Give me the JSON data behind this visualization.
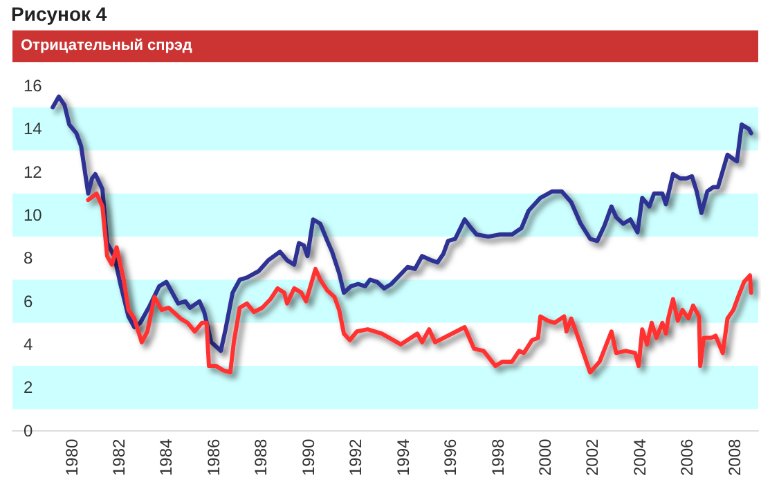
{
  "chart_data": {
    "type": "line",
    "title": "Рисунок 4",
    "subtitle": "Отрицательный спрэд",
    "xlim": [
      1977.5,
      2009
    ],
    "xticks": [
      1980,
      1982,
      1984,
      1986,
      1988,
      1990,
      1992,
      1994,
      1996,
      1998,
      2000,
      2002,
      2004,
      2006,
      2008
    ],
    "ylim": [
      0,
      16
    ],
    "yticks": [
      0,
      2,
      4,
      6,
      8,
      10,
      12,
      14,
      16
    ],
    "grid": false,
    "marker": "none",
    "line_style": "solid",
    "bands": [
      {
        "axis": "y",
        "from": 1,
        "to": 3,
        "color": "#ccffff"
      },
      {
        "axis": "y",
        "from": 5,
        "to": 7,
        "color": "#ccffff"
      },
      {
        "axis": "y",
        "from": 9,
        "to": 11,
        "color": "#ccffff"
      },
      {
        "axis": "y",
        "from": 13,
        "to": 15,
        "color": "#ccffff"
      }
    ],
    "series": [
      {
        "color": "#2e3192",
        "x": [
          1979.2,
          1979.46,
          1979.7,
          1979.9,
          1980.2,
          1980.4,
          1980.7,
          1980.86,
          1981.0,
          1981.3,
          1981.5,
          1981.8,
          1982.06,
          1982.4,
          1982.65,
          1982.9,
          1983.3,
          1983.7,
          1984.0,
          1984.3,
          1984.5,
          1984.8,
          1985.0,
          1985.4,
          1985.6,
          1985.9,
          1986.1,
          1986.3,
          1986.5,
          1986.8,
          1987.1,
          1987.4,
          1987.9,
          1988.3,
          1988.8,
          1989.1,
          1989.4,
          1989.6,
          1989.8,
          1989.96,
          1990.2,
          1990.5,
          1990.8,
          1991.0,
          1991.3,
          1991.5,
          1991.8,
          1992.1,
          1992.4,
          1992.6,
          1992.9,
          1993.2,
          1993.5,
          1993.85,
          1994.2,
          1994.5,
          1994.8,
          1995.2,
          1995.45,
          1995.7,
          1995.9,
          1996.2,
          1996.6,
          1996.8,
          1997.1,
          1997.6,
          1998.1,
          1998.6,
          1999.0,
          1999.3,
          1999.8,
          2000.3,
          2000.7,
          2001.1,
          2001.5,
          2001.9,
          2002.2,
          2002.5,
          2002.8,
          2003.0,
          2003.3,
          2003.6,
          2003.9,
          2004.1,
          2004.4,
          2004.6,
          2004.95,
          2005.1,
          2005.4,
          2005.7,
          2005.96,
          2006.2,
          2006.4,
          2006.6,
          2006.85,
          2007.1,
          2007.3,
          2007.7,
          2007.95,
          2008.1,
          2008.3,
          2008.6,
          2008.7
        ],
        "values": [
          15.0,
          15.5,
          15.1,
          14.2,
          13.8,
          13.2,
          11.0,
          11.7,
          11.9,
          11.2,
          8.7,
          8.1,
          6.8,
          5.3,
          4.8,
          5.0,
          5.8,
          6.7,
          6.9,
          6.3,
          5.9,
          6.0,
          5.7,
          6.0,
          5.5,
          4.1,
          3.9,
          3.7,
          4.7,
          6.4,
          7.0,
          7.1,
          7.4,
          7.9,
          8.3,
          7.9,
          7.7,
          8.7,
          8.6,
          8.1,
          9.8,
          9.6,
          8.8,
          8.3,
          7.3,
          6.4,
          6.7,
          6.8,
          6.7,
          7.0,
          6.9,
          6.6,
          6.8,
          7.2,
          7.6,
          7.5,
          8.1,
          7.9,
          7.8,
          8.2,
          8.8,
          8.9,
          9.8,
          9.5,
          9.1,
          9.0,
          9.1,
          9.1,
          9.4,
          10.2,
          10.8,
          11.1,
          11.1,
          10.6,
          9.6,
          8.9,
          8.8,
          9.5,
          10.4,
          9.9,
          9.6,
          9.8,
          9.2,
          10.8,
          10.4,
          11.0,
          11.0,
          10.5,
          11.9,
          11.7,
          11.7,
          11.8,
          11.1,
          10.1,
          11.1,
          11.3,
          11.3,
          12.8,
          12.6,
          12.5,
          14.2,
          14.0,
          13.8
        ]
      },
      {
        "color": "#ff3333",
        "x": [
          1980.7,
          1981.05,
          1981.3,
          1981.5,
          1981.7,
          1981.9,
          1982.2,
          1982.4,
          1982.65,
          1982.96,
          1983.2,
          1983.5,
          1983.8,
          1984.1,
          1984.4,
          1984.6,
          1984.9,
          1985.2,
          1985.5,
          1985.7,
          1985.8,
          1986.1,
          1986.4,
          1986.7,
          1986.85,
          1987.1,
          1987.4,
          1987.7,
          1988.05,
          1988.4,
          1988.7,
          1988.98,
          1989.1,
          1989.4,
          1989.7,
          1989.9,
          1990.3,
          1990.5,
          1990.8,
          1991.1,
          1991.3,
          1991.5,
          1991.75,
          1992.05,
          1992.5,
          1993.1,
          1993.9,
          1994.6,
          1994.8,
          1995.1,
          1995.35,
          1996.6,
          1997.0,
          1997.4,
          1997.9,
          1998.2,
          1998.6,
          1998.9,
          1999.1,
          1999.45,
          1999.7,
          1999.8,
          2000.1,
          2000.4,
          2000.8,
          2000.9,
          2001.1,
          2001.4,
          2001.9,
          2002.3,
          2002.8,
          2003.0,
          2003.4,
          2003.8,
          2003.95,
          2004.1,
          2004.3,
          2004.5,
          2004.7,
          2004.95,
          2005.1,
          2005.2,
          2005.4,
          2005.6,
          2005.8,
          2006.05,
          2006.25,
          2006.5,
          2006.55,
          2006.7,
          2007.0,
          2007.2,
          2007.5,
          2007.7,
          2007.95,
          2008.15,
          2008.4,
          2008.65,
          2008.7
        ],
        "values": [
          10.7,
          11.0,
          10.4,
          8.1,
          7.7,
          8.5,
          7.0,
          5.6,
          5.2,
          4.1,
          4.6,
          6.2,
          5.6,
          5.7,
          5.4,
          5.2,
          5.0,
          4.6,
          5.0,
          5.0,
          3.0,
          3.0,
          2.8,
          2.7,
          4.1,
          5.7,
          5.9,
          5.5,
          5.7,
          6.1,
          6.6,
          6.4,
          5.9,
          6.6,
          6.4,
          6.0,
          7.5,
          7.0,
          6.5,
          6.2,
          5.6,
          4.5,
          4.2,
          4.6,
          4.7,
          4.5,
          4.0,
          4.5,
          4.1,
          4.7,
          4.1,
          4.8,
          3.8,
          3.7,
          3.0,
          3.2,
          3.2,
          3.7,
          3.6,
          4.2,
          4.3,
          5.3,
          5.1,
          5.0,
          5.3,
          4.6,
          5.2,
          4.3,
          2.7,
          3.2,
          4.6,
          3.6,
          3.7,
          3.6,
          3.0,
          4.7,
          4.0,
          5.0,
          4.3,
          5.0,
          4.5,
          5.2,
          6.1,
          5.1,
          5.6,
          5.2,
          5.8,
          5.3,
          3.0,
          4.3,
          4.3,
          4.4,
          3.6,
          5.2,
          5.6,
          6.2,
          6.9,
          7.2,
          6.4
        ]
      }
    ]
  }
}
